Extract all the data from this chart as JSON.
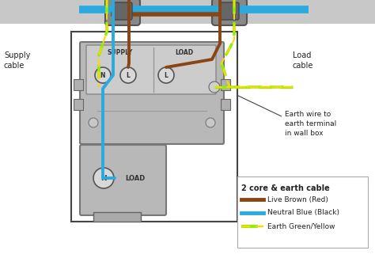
{
  "title": "2 core & earth cable",
  "legend_items": [
    {
      "label": "Live Brown (Red)",
      "color": "#8B4513"
    },
    {
      "label": "Neutral Blue (Black)",
      "color": "#29ABE2"
    },
    {
      "label": "Earth Green/Yellow",
      "color": "earth"
    }
  ],
  "supply_label": "Supply\ncable",
  "load_label": "Load\ncable",
  "earth_label": "Earth wire to\nearth terminal\nin wall box",
  "supply_terminal": "SUPPLY",
  "load_terminal": "LOAD",
  "load_bottom_label": "LOAD",
  "neutral_bottom_label": "N",
  "brown": "#8B4513",
  "blue": "#29ABE2",
  "earth_green": "#90EE00",
  "earth_yellow": "#FFD700",
  "wall_color": "#c0c0c0",
  "box_bg": "#ffffff",
  "device_color": "#b8b8b8",
  "device_edge": "#777777",
  "term_color": "#cccccc"
}
